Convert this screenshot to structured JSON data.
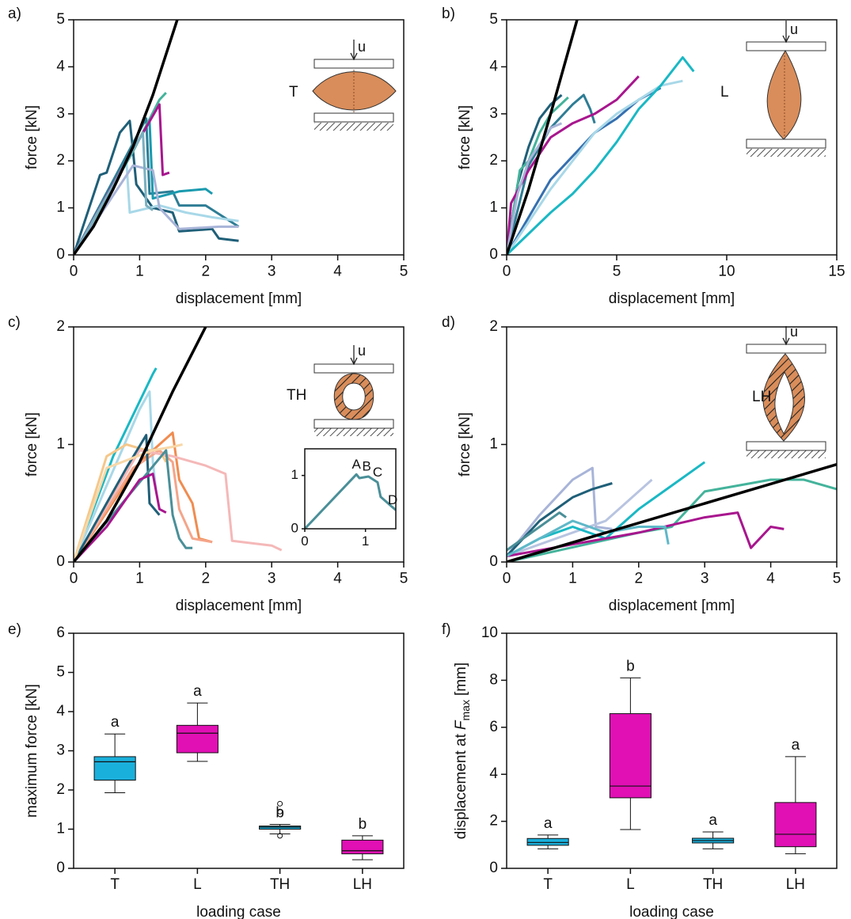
{
  "chart_data": [
    {
      "type": "line",
      "label": "a)",
      "xlabel": "displacement [mm]",
      "ylabel": "force [kN]",
      "xlim": [
        0,
        5
      ],
      "ylim": [
        0,
        5
      ],
      "xticks": [
        0,
        1,
        2,
        3,
        4,
        5
      ],
      "yticks": [
        0,
        1,
        2,
        3,
        4,
        5
      ],
      "inset_label": "T",
      "load_label": "u",
      "series": [
        {
          "color": "#1f5f78",
          "x": [
            0,
            0.4,
            0.5,
            0.7,
            0.85,
            0.9,
            0.95,
            1,
            1.2,
            1.5,
            1.6,
            2.1,
            2.2,
            2.5
          ],
          "values": [
            0,
            1.7,
            1.75,
            2.6,
            2.85,
            2.2,
            1.5,
            1.4,
            1.0,
            0.9,
            0.5,
            0.55,
            0.35,
            0.3
          ]
        },
        {
          "color": "#2e7d95",
          "x": [
            0,
            1.1,
            1.15,
            1.5,
            1.6,
            2.0,
            2.5
          ],
          "values": [
            0,
            2.9,
            1.3,
            1.35,
            1.05,
            1.05,
            0.6
          ]
        },
        {
          "color": "#1a9aae",
          "x": [
            0,
            1.15,
            1.2,
            1.6,
            2.0,
            2.1
          ],
          "values": [
            0,
            2.85,
            1.2,
            1.35,
            1.4,
            1.3
          ]
        },
        {
          "color": "#a8d8e8",
          "x": [
            0,
            0.8,
            0.85,
            1.3,
            1.7,
            2.1,
            2.5
          ],
          "values": [
            0,
            2.0,
            0.9,
            1.05,
            0.9,
            0.8,
            0.72
          ]
        },
        {
          "color": "#44b39b",
          "x": [
            0,
            0.9,
            1.3,
            1.4
          ],
          "values": [
            0,
            2.2,
            3.3,
            3.45
          ]
        },
        {
          "color": "#a8b4d8",
          "x": [
            0,
            0.9,
            1.2,
            1.3,
            1.6,
            2.2,
            2.5
          ],
          "values": [
            0,
            1.9,
            1.8,
            1.0,
            0.55,
            0.6,
            0.6
          ]
        },
        {
          "color": "#a8168e",
          "x": [
            0,
            0.6,
            1.3,
            1.35,
            1.45
          ],
          "values": [
            0,
            1.5,
            3.2,
            1.7,
            1.75
          ]
        },
        {
          "color": "#7ab0c0",
          "x": [
            0,
            1.05,
            1.1,
            1.2
          ],
          "values": [
            0,
            2.6,
            1.05,
            0.95
          ]
        },
        {
          "color": "#000000",
          "x": [
            0,
            0.3,
            0.6,
            0.9,
            1.2,
            1.57
          ],
          "values": [
            0,
            0.6,
            1.4,
            2.3,
            3.4,
            5
          ]
        }
      ]
    },
    {
      "type": "line",
      "label": "b)",
      "xlabel": "displacement [mm]",
      "ylabel": "force [kN]",
      "xlim": [
        0,
        15
      ],
      "ylim": [
        0,
        5
      ],
      "xticks": [
        0,
        5,
        10,
        15
      ],
      "yticks": [
        0,
        1,
        2,
        3,
        4,
        5
      ],
      "inset_label": "L",
      "load_label": "u",
      "series": [
        {
          "color": "#1f5f78",
          "x": [
            0,
            0.5,
            1,
            1.5,
            2,
            2.5
          ],
          "values": [
            0,
            1.5,
            2.3,
            2.9,
            3.2,
            3.4
          ]
        },
        {
          "color": "#44b39b",
          "x": [
            0,
            0.6,
            1,
            1.5,
            2,
            2.8
          ],
          "values": [
            0,
            1.8,
            2.0,
            2.6,
            3.0,
            3.35
          ]
        },
        {
          "color": "#2e7d95",
          "x": [
            0,
            1,
            2,
            3,
            3.5,
            3.8,
            4
          ],
          "values": [
            0,
            1.9,
            2.7,
            3.2,
            3.4,
            3.1,
            2.8
          ]
        },
        {
          "color": "#a8168e",
          "x": [
            0,
            0.2,
            1,
            2,
            3,
            4,
            5,
            6
          ],
          "values": [
            0,
            1.1,
            1.8,
            2.5,
            2.8,
            3.0,
            3.3,
            3.8
          ]
        },
        {
          "color": "#3570b0",
          "x": [
            0,
            1,
            2,
            3,
            4,
            5,
            6,
            7
          ],
          "values": [
            0,
            0.8,
            1.6,
            2.1,
            2.6,
            2.9,
            3.3,
            3.55
          ]
        },
        {
          "color": "#a8d8e8",
          "x": [
            0,
            2,
            4,
            5,
            6,
            7,
            8
          ],
          "values": [
            0,
            1.4,
            2.6,
            3.0,
            3.3,
            3.6,
            3.7
          ]
        },
        {
          "color": "#1ab8c4",
          "x": [
            0,
            2,
            3,
            4,
            5,
            6,
            7,
            8,
            8.5
          ],
          "values": [
            0,
            0.9,
            1.3,
            1.8,
            2.4,
            3.1,
            3.6,
            4.2,
            3.9
          ]
        },
        {
          "color": "#a8b4d8",
          "x": [
            0,
            0.5,
            1,
            2,
            2.5
          ],
          "values": [
            0,
            1.3,
            2.0,
            2.7,
            2.8
          ]
        },
        {
          "color": "#000000",
          "x": [
            0,
            1,
            2,
            3.2
          ],
          "values": [
            0,
            1.4,
            3,
            5
          ]
        }
      ]
    },
    {
      "type": "line",
      "label": "c)",
      "xlabel": "displacement [mm]",
      "ylabel": "force [kN]",
      "xlim": [
        0,
        5
      ],
      "ylim": [
        0,
        2
      ],
      "xticks": [
        0,
        1,
        2,
        3,
        4,
        5
      ],
      "yticks": [
        0,
        1,
        2
      ],
      "inset_label": "TH",
      "load_label": "u",
      "series": [
        {
          "color": "#1ab8c4",
          "x": [
            0,
            0.6,
            1.2,
            1.25
          ],
          "values": [
            0,
            0.9,
            1.6,
            1.65
          ]
        },
        {
          "color": "#a8d8e8",
          "x": [
            0,
            1,
            1.15,
            1.2,
            1.25
          ],
          "values": [
            0,
            1.3,
            1.45,
            0.85,
            0.6
          ]
        },
        {
          "color": "#f5c78a",
          "x": [
            0,
            0.5,
            0.8,
            1.1,
            1.3,
            1.4
          ],
          "values": [
            0,
            0.9,
            1.0,
            0.95,
            0.95,
            0.85
          ]
        },
        {
          "color": "#f08c50",
          "x": [
            0,
            1,
            1.5,
            1.6,
            1.8,
            1.9,
            2.1
          ],
          "values": [
            0,
            0.85,
            1.1,
            0.7,
            0.5,
            0.2,
            0.17
          ]
        },
        {
          "color": "#f4a58a",
          "x": [
            0,
            0.9,
            1.3,
            1.5,
            1.6,
            1.8,
            2.1
          ],
          "values": [
            0,
            0.8,
            0.95,
            0.85,
            0.45,
            0.2,
            0.17
          ]
        },
        {
          "color": "#f5b8b8",
          "x": [
            0,
            1.0,
            1.5,
            2.0,
            2.3,
            2.4,
            3,
            3.15
          ],
          "values": [
            0,
            0.95,
            0.9,
            0.82,
            0.75,
            0.18,
            0.14,
            0.1
          ]
        },
        {
          "color": "#1f5f78",
          "x": [
            0,
            0.8,
            1.1,
            1.15,
            1.3
          ],
          "values": [
            0,
            0.8,
            1.08,
            0.5,
            0.4
          ]
        },
        {
          "color": "#4a8f98",
          "x": [
            0,
            1.4,
            1.5,
            1.6,
            1.7,
            1.8
          ],
          "values": [
            0,
            0.95,
            0.4,
            0.2,
            0.12,
            0.12
          ]
        },
        {
          "color": "#a8168e",
          "x": [
            0,
            0.5,
            1,
            1.2,
            1.3,
            1.4
          ],
          "values": [
            0,
            0.3,
            0.7,
            0.75,
            0.45,
            0.42
          ]
        },
        {
          "color": "#f8d8a8",
          "x": [
            0,
            0.5,
            1.2,
            1.5,
            1.65
          ],
          "values": [
            0,
            0.8,
            0.95,
            0.98,
            1.0
          ]
        },
        {
          "color": "#000000",
          "x": [
            0,
            0.5,
            1,
            1.5,
            2
          ],
          "values": [
            0,
            0.35,
            0.85,
            1.45,
            2.0
          ]
        }
      ],
      "inset": {
        "xlim": [
          0,
          1.5
        ],
        "ylim": [
          0,
          1.5
        ],
        "xticks": [
          0,
          1
        ],
        "yticks": [
          0,
          1
        ],
        "series": [
          {
            "color": "#4a8f98",
            "x": [
              0,
              0.85,
              0.9,
              1.05,
              1.2,
              1.25,
              1.4,
              1.5
            ],
            "values": [
              0,
              1.02,
              0.95,
              0.98,
              0.87,
              0.6,
              0.45,
              0.35
            ]
          }
        ],
        "points": [
          {
            "label": "A",
            "x": 0.85,
            "y": 1.02
          },
          {
            "label": "B",
            "x": 1.02,
            "y": 0.98
          },
          {
            "label": "C",
            "x": 1.2,
            "y": 0.87
          },
          {
            "label": "D",
            "x": 1.45,
            "y": 0.35
          }
        ]
      }
    },
    {
      "type": "line",
      "label": "d)",
      "xlabel": "displacement [mm]",
      "ylabel": "force [kN]",
      "xlim": [
        0,
        5
      ],
      "ylim": [
        0,
        2
      ],
      "xticks": [
        0,
        1,
        2,
        3,
        4,
        5
      ],
      "yticks": [
        0,
        1,
        2
      ],
      "inset_label": "LH",
      "load_label": "u",
      "series": [
        {
          "color": "#a8b4d8",
          "x": [
            0,
            0.5,
            1,
            1.3,
            1.35,
            1.6
          ],
          "values": [
            0.05,
            0.4,
            0.7,
            0.8,
            0.3,
            0.28
          ]
        },
        {
          "color": "#1f5f78",
          "x": [
            0,
            0.5,
            1.0,
            1.3,
            1.6
          ],
          "values": [
            0.05,
            0.35,
            0.55,
            0.62,
            0.67
          ]
        },
        {
          "color": "#b8c4e0",
          "x": [
            0,
            1.5,
            2,
            2.2
          ],
          "values": [
            0.05,
            0.35,
            0.6,
            0.7
          ]
        },
        {
          "color": "#1ab8c4",
          "x": [
            0,
            0.5,
            1,
            1.5,
            2,
            2.5,
            3
          ],
          "values": [
            0.05,
            0.2,
            0.3,
            0.2,
            0.45,
            0.65,
            0.85
          ]
        },
        {
          "color": "#44b39b",
          "x": [
            0,
            2,
            2.5,
            3,
            3.5,
            4,
            4.5,
            5
          ],
          "values": [
            0,
            0.25,
            0.3,
            0.6,
            0.65,
            0.7,
            0.7,
            0.62
          ]
        },
        {
          "color": "#a8168e",
          "x": [
            0,
            1,
            2,
            3,
            3.5,
            3.7,
            4,
            4.2
          ],
          "values": [
            0.05,
            0.15,
            0.25,
            0.38,
            0.42,
            0.12,
            0.3,
            0.28
          ]
        },
        {
          "color": "#4a8f98",
          "x": [
            0,
            0.5,
            0.8,
            0.9
          ],
          "values": [
            0.1,
            0.3,
            0.42,
            0.38
          ]
        },
        {
          "color": "#5fb8c8",
          "x": [
            0,
            1,
            1.5,
            2,
            2.4,
            2.45
          ],
          "values": [
            0.05,
            0.35,
            0.25,
            0.3,
            0.3,
            0.15
          ]
        },
        {
          "color": "#000000",
          "x": [
            0,
            5
          ],
          "values": [
            0,
            0.83
          ]
        }
      ]
    },
    {
      "type": "box",
      "label": "e)",
      "xlabel": "loading case",
      "ylabel": "maximum force [kN]",
      "ylim": [
        0,
        6
      ],
      "yticks": [
        0,
        1,
        2,
        3,
        4,
        5,
        6
      ],
      "categories": [
        "T",
        "L",
        "TH",
        "LH"
      ],
      "letters": [
        "a",
        "a",
        "b",
        "b"
      ],
      "boxes": [
        {
          "color": "#1ab0dc",
          "min": 1.93,
          "q1": 2.25,
          "median": 2.72,
          "q3": 2.85,
          "max": 3.43
        },
        {
          "color": "#e010b4",
          "min": 2.73,
          "q1": 2.95,
          "median": 3.45,
          "q3": 3.65,
          "max": 4.22
        },
        {
          "color": "#1ab0dc",
          "min": 0.88,
          "q1": 1.0,
          "median": 1.05,
          "q3": 1.08,
          "max": 1.12,
          "outliers": [
            1.45,
            1.65,
            0.83
          ]
        },
        {
          "color": "#e010b4",
          "min": 0.22,
          "q1": 0.37,
          "median": 0.45,
          "q3": 0.72,
          "max": 0.83
        }
      ]
    },
    {
      "type": "box",
      "label": "f)",
      "xlabel": "loading case",
      "ylabel": {
        "text": "displacement at",
        "symbol": "F",
        "subscript": "max",
        "unit": "[mm]"
      },
      "ylim": [
        0,
        10
      ],
      "yticks": [
        0,
        2,
        4,
        6,
        8,
        10
      ],
      "categories": [
        "T",
        "L",
        "TH",
        "LH"
      ],
      "letters": [
        "a",
        "b",
        "a",
        "a"
      ],
      "boxes": [
        {
          "color": "#1ab0dc",
          "min": 0.83,
          "q1": 0.98,
          "median": 1.1,
          "q3": 1.27,
          "max": 1.42
        },
        {
          "color": "#e010b4",
          "min": 1.65,
          "q1": 3.0,
          "median": 3.5,
          "q3": 6.58,
          "max": 8.1
        },
        {
          "color": "#1ab0dc",
          "min": 0.83,
          "q1": 1.08,
          "median": 1.18,
          "q3": 1.28,
          "max": 1.55
        },
        {
          "color": "#e010b4",
          "min": 0.62,
          "q1": 0.92,
          "median": 1.45,
          "q3": 2.8,
          "max": 4.75
        }
      ]
    }
  ]
}
